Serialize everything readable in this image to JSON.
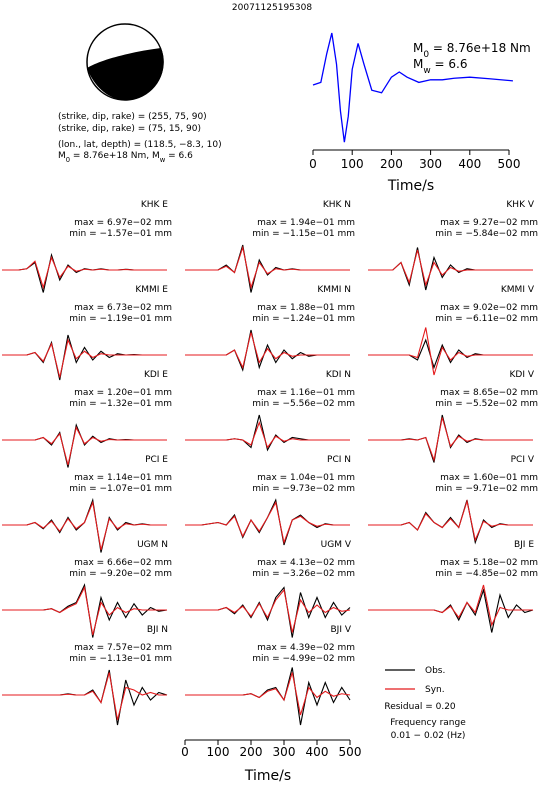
{
  "title": "20071125195308",
  "mechanism": [
    "(strike, dip, rake) = (255, 75, 90)",
    "(strike, dip, rake) = (75, 15, 90)",
    "(lon., lat, depth) = (118.5, −8.3, 10)"
  ],
  "moment": [
    "M",
    "0",
    " = 8.76e+18 Nm, M",
    "w",
    " = 6.6"
  ],
  "chart_data": [
    {
      "type": "line",
      "xlabel": "Time/s",
      "xlim": [
        0,
        500
      ],
      "xticks": [
        0,
        100,
        200,
        300,
        400,
        500
      ],
      "color": "#0000ff",
      "annotations": [
        [
          "M",
          "0",
          " = 8.76e+18 Nm"
        ],
        [
          "M",
          "w",
          " = 6.6"
        ]
      ],
      "x": [
        0,
        20,
        35,
        48,
        60,
        70,
        80,
        90,
        100,
        115,
        130,
        150,
        175,
        200,
        220,
        240,
        270,
        300,
        330,
        360,
        400,
        450,
        510
      ],
      "values": [
        0,
        0.05,
        0.6,
        1.0,
        0.4,
        -0.5,
        -1.1,
        -0.6,
        0.3,
        0.8,
        0.4,
        -0.1,
        -0.15,
        0.15,
        0.25,
        0.15,
        0.05,
        0.1,
        0.1,
        0.13,
        0.15,
        0.12,
        0.08
      ]
    },
    {
      "type": "waveforms",
      "xlabel": "Time/s",
      "xlim": [
        0,
        500
      ],
      "xticks": [
        0,
        100,
        200,
        300,
        400,
        500
      ],
      "series": [
        {
          "name": "Obs.",
          "color": "#000000"
        },
        {
          "name": "Syn.",
          "color": "#e41a1c"
        }
      ],
      "notes": [
        "Residual = 0.20",
        "Frequency range",
        "0.01 − 0.02 (Hz)"
      ],
      "t": [
        0,
        25,
        50,
        75,
        100,
        125,
        150,
        175,
        200,
        225,
        250,
        275,
        300,
        325,
        350,
        375,
        400,
        425,
        450,
        475,
        500
      ],
      "panels": [
        {
          "name": "KHK E",
          "max": "max = 6.97e−02 mm",
          "min": "min = −1.57e−01 mm",
          "values": [
            [
              0,
              0,
              0,
              0.05,
              0.3,
              -0.9,
              0.6,
              -0.4,
              0.2,
              -0.1,
              0.05,
              0,
              0.05,
              0,
              0,
              0.03,
              0,
              0,
              0,
              0,
              0
            ],
            [
              0,
              0,
              0,
              0.05,
              0.35,
              -0.7,
              0.5,
              -0.3,
              0.15,
              -0.05,
              0.03,
              0,
              0.03,
              0,
              0,
              0.02,
              0,
              0,
              0,
              0,
              0
            ]
          ]
        },
        {
          "name": "KMMI E",
          "max": "max = 6.73e−02 mm",
          "min": "min = −1.19e−01 mm",
          "values": [
            [
              0,
              0,
              0,
              0,
              0.1,
              -0.3,
              0.5,
              -1.0,
              0.8,
              -0.3,
              0.3,
              -0.2,
              0.15,
              -0.1,
              0.05,
              0,
              0.02,
              0,
              0,
              0,
              0
            ],
            [
              0,
              0,
              0,
              0,
              0.1,
              -0.25,
              0.45,
              -0.9,
              0.6,
              -0.15,
              0.15,
              -0.1,
              0.05,
              0,
              0,
              0,
              0,
              0,
              0,
              0,
              0
            ]
          ]
        },
        {
          "name": "KDI E",
          "max": "max = 1.20e−01 mm",
          "min": "min = −1.32e−01 mm",
          "values": [
            [
              0,
              0,
              0,
              0,
              0,
              0.1,
              -0.2,
              0.3,
              -1.1,
              0.6,
              -0.2,
              0.15,
              -0.1,
              0.05,
              0,
              0.02,
              0,
              0,
              0,
              0,
              0
            ],
            [
              0,
              0,
              0,
              0,
              0,
              0.1,
              -0.15,
              0.25,
              -1.0,
              0.5,
              -0.15,
              0.1,
              -0.05,
              0.02,
              0,
              0,
              0,
              0,
              0,
              0,
              0
            ]
          ]
        },
        {
          "name": "PCI E",
          "max": "max = 1.14e−01 mm",
          "min": "min = −1.07e−01 mm",
          "values": [
            [
              0,
              0,
              0,
              0,
              0.1,
              -0.15,
              0.2,
              -0.3,
              0.3,
              -0.2,
              0.1,
              1.0,
              -1.1,
              0.3,
              -0.2,
              0.1,
              0,
              0.05,
              0,
              0,
              0
            ],
            [
              0,
              0,
              0,
              0,
              0.1,
              -0.12,
              0.15,
              -0.25,
              0.25,
              -0.15,
              0.1,
              0.9,
              -1.0,
              0.25,
              -0.15,
              0.05,
              0,
              0.03,
              0,
              0,
              0
            ]
          ]
        },
        {
          "name": "UGM N",
          "max": "max = 6.66e−02 mm",
          "min": "min = −9.20e−02 mm",
          "values": [
            [
              0,
              0,
              0,
              0,
              0,
              0,
              0.05,
              -0.1,
              0.15,
              0.3,
              1.0,
              -1.1,
              0.5,
              -0.4,
              0.3,
              -0.3,
              0.25,
              -0.2,
              0.1,
              -0.05,
              0
            ],
            [
              0,
              0,
              0,
              0,
              0,
              0,
              0.05,
              -0.1,
              0.1,
              0.25,
              0.9,
              -1.0,
              0.3,
              -0.2,
              0.1,
              -0.1,
              0.05,
              0,
              0,
              0,
              0
            ]
          ]
        },
        {
          "name": "BJI N",
          "max": "max = 7.57e−02 mm",
          "min": "min = −1.13e−01 mm",
          "values": [
            [
              0,
              0,
              0,
              0,
              0,
              0,
              0,
              0,
              0.05,
              0,
              0,
              0.2,
              -0.3,
              1.0,
              -1.2,
              0.6,
              -0.4,
              0.3,
              -0.2,
              0.1,
              0
            ],
            [
              0,
              0,
              0,
              0,
              0,
              0,
              0,
              0,
              0.03,
              0,
              0,
              0.15,
              -0.3,
              0.9,
              -1.0,
              0.3,
              0.2,
              0,
              0.1,
              0,
              0
            ]
          ]
        },
        {
          "name": "KHK N",
          "max": "max = 1.94e−01 mm",
          "min": "min = −1.15e−01 mm",
          "values": [
            [
              0,
              0,
              0,
              0,
              0,
              0.2,
              -0.1,
              1.0,
              -0.9,
              0.4,
              -0.2,
              0.1,
              0,
              0.05,
              0,
              0,
              0,
              0,
              0,
              0,
              0
            ],
            [
              0,
              0,
              0,
              0,
              0,
              0.15,
              -0.1,
              0.9,
              -0.7,
              0.3,
              -0.15,
              0.05,
              0,
              0.03,
              0,
              0,
              0,
              0,
              0,
              0,
              0
            ]
          ]
        },
        {
          "name": "KMMI N",
          "max": "max = 1.88e−01 mm",
          "min": "min = −1.24e−01 mm",
          "values": [
            [
              0,
              0,
              0,
              0,
              0,
              0,
              0.2,
              -0.6,
              1.0,
              -0.5,
              0.4,
              -0.3,
              0.2,
              -0.15,
              0.1,
              -0.05,
              0,
              0,
              0,
              0,
              0
            ],
            [
              0,
              0,
              0,
              0,
              0,
              0,
              0.2,
              -0.5,
              0.9,
              -0.3,
              0.25,
              -0.15,
              0.1,
              -0.05,
              0,
              0,
              0,
              0,
              0,
              0,
              0
            ]
          ]
        },
        {
          "name": "KDI N",
          "max": "max = 1.16e−01 mm",
          "min": "min = −5.56e−02 mm",
          "values": [
            [
              0,
              0,
              0,
              0,
              0,
              0,
              0.05,
              0,
              -0.3,
              1.0,
              -0.4,
              0.2,
              -0.1,
              0.1,
              0.05,
              0,
              0,
              0,
              0,
              0,
              0
            ],
            [
              0,
              0,
              0,
              0,
              0,
              0,
              0.05,
              0,
              -0.2,
              0.7,
              -0.3,
              0.15,
              -0.05,
              0.05,
              0,
              0,
              0,
              0,
              0,
              0,
              0
            ]
          ]
        },
        {
          "name": "PCI N",
          "max": "max = 1.04e−01 mm",
          "min": "min = −9.73e−02 mm",
          "values": [
            [
              0,
              0,
              0,
              0.05,
              0.1,
              0,
              0.4,
              -0.5,
              0.2,
              -0.3,
              0.3,
              1.0,
              -0.8,
              0.2,
              0.4,
              0.1,
              -0.1,
              0.05,
              0,
              0,
              0
            ],
            [
              0,
              0,
              0,
              0.05,
              0.1,
              0,
              0.35,
              -0.45,
              0.2,
              -0.25,
              0.3,
              0.9,
              -0.7,
              0.2,
              0.35,
              0.1,
              -0.05,
              0.03,
              0,
              0,
              0
            ]
          ]
        },
        {
          "name": "UGM V",
          "max": "max = 4.13e−02 mm",
          "min": "min = −3.26e−02 mm",
          "values": [
            [
              0,
              0,
              0,
              0,
              0,
              0.1,
              -0.15,
              0.2,
              -0.3,
              0.3,
              -0.4,
              0.5,
              0.9,
              -1.1,
              0.7,
              -0.3,
              0.5,
              -0.3,
              0.3,
              -0.2,
              0.1
            ],
            [
              0,
              0,
              0,
              0,
              0,
              0.1,
              -0.1,
              0.15,
              -0.25,
              0.25,
              -0.3,
              0.4,
              0.8,
              -0.9,
              0.4,
              -0.1,
              0.2,
              -0.1,
              0.1,
              -0.05,
              0
            ]
          ]
        },
        {
          "name": "BJI V",
          "max": "max = 4.39e−02 mm",
          "min": "min = −4.99e−02 mm",
          "values": [
            [
              0,
              0,
              0,
              0,
              0,
              0,
              0,
              0,
              0.05,
              -0.1,
              0.2,
              0.3,
              -0.2,
              1.1,
              -1.2,
              0.5,
              -0.4,
              0.5,
              -0.3,
              0.3,
              -0.2
            ],
            [
              0,
              0,
              0,
              0,
              0,
              0,
              0,
              0,
              0.05,
              -0.1,
              0.15,
              0.25,
              -0.2,
              0.9,
              -0.8,
              0.3,
              -0.1,
              0.15,
              -0.05,
              0.05,
              0
            ]
          ]
        },
        {
          "name": "KHK V",
          "max": "max = 9.27e−02 mm",
          "min": "min = −5.84e−02 mm",
          "values": [
            [
              0,
              0,
              0,
              0,
              0.3,
              -0.6,
              0.9,
              -0.8,
              0.5,
              -0.3,
              0.2,
              -0.1,
              0.05,
              0,
              0,
              0,
              0,
              0,
              0,
              0,
              0
            ],
            [
              0,
              0,
              0,
              0,
              0.3,
              -0.5,
              0.8,
              -0.6,
              0.3,
              -0.2,
              0.1,
              -0.05,
              0,
              0,
              0,
              0,
              0,
              0,
              0,
              0,
              0
            ]
          ]
        },
        {
          "name": "KMMI V",
          "max": "max = 9.02e−02 mm",
          "min": "min = −6.11e−02 mm",
          "values": [
            [
              0,
              0,
              0,
              0,
              0,
              0,
              -0.2,
              0.6,
              -0.5,
              0.4,
              -0.3,
              0.2,
              -0.1,
              0.05,
              0,
              0,
              0,
              0,
              0,
              0,
              0
            ],
            [
              0,
              0,
              0,
              0,
              0,
              0,
              -0.1,
              1.1,
              -0.8,
              0.3,
              -0.2,
              0.1,
              -0.05,
              0,
              0,
              0,
              0,
              0,
              0,
              0,
              0
            ]
          ]
        },
        {
          "name": "KDI V",
          "max": "max = 8.65e−02 mm",
          "min": "min = −5.52e−02 mm",
          "values": [
            [
              0,
              0,
              0,
              0,
              0,
              0.05,
              0,
              0.1,
              -0.9,
              1.0,
              -0.3,
              0.2,
              -0.1,
              0.05,
              0,
              0,
              0,
              0,
              0,
              0,
              0
            ],
            [
              0,
              0,
              0,
              0,
              0,
              0.03,
              0,
              0.1,
              -0.8,
              0.9,
              -0.25,
              0.15,
              -0.05,
              0.03,
              0,
              0,
              0,
              0,
              0,
              0,
              0
            ]
          ]
        },
        {
          "name": "PCI V",
          "max": "max = 1.60e−01 mm",
          "min": "min = −9.71e−02 mm",
          "values": [
            [
              0,
              0,
              0,
              0,
              0,
              0.1,
              -0.2,
              0.5,
              0.1,
              -0.1,
              0.3,
              -0.1,
              1.0,
              -0.7,
              0.2,
              -0.1,
              0.05,
              0,
              0,
              0,
              0
            ],
            [
              0,
              0,
              0,
              0,
              0,
              0.1,
              -0.2,
              0.45,
              0.1,
              -0.1,
              0.25,
              -0.1,
              0.95,
              -0.6,
              0.15,
              -0.05,
              0.03,
              0,
              0,
              0,
              0
            ]
          ]
        },
        {
          "name": "BJI E",
          "max": "max = 5.18e−02 mm",
          "min": "min = −4.85e−02 mm",
          "values": [
            [
              0,
              0,
              0,
              0,
              0,
              0,
              0,
              0,
              0,
              -0.1,
              0.2,
              -0.4,
              0.3,
              -0.2,
              0.8,
              -0.9,
              0.6,
              -0.3,
              0.2,
              -0.1,
              0
            ],
            [
              0,
              0,
              0,
              0,
              0,
              0,
              0,
              0,
              0,
              -0.1,
              0.15,
              -0.3,
              0.3,
              -0.1,
              1.0,
              -0.6,
              0.1,
              0,
              0,
              0,
              0
            ]
          ]
        }
      ]
    }
  ]
}
